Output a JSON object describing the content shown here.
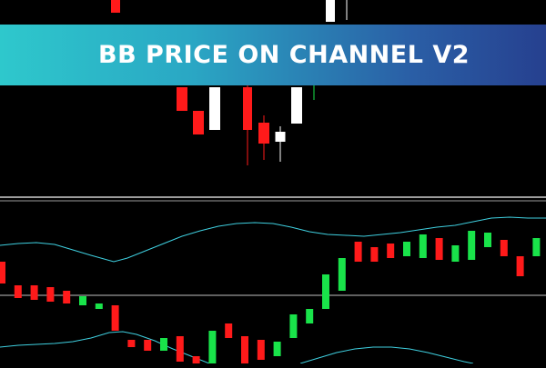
{
  "banner": {
    "title": "BB PRICE ON CHANNEL V2"
  },
  "colors": {
    "background": "#000000",
    "bull_main": "#ffffff",
    "bear_main": "#ff1a1a",
    "bull_indicator": "#19e34a",
    "bear_indicator": "#ff1a1a",
    "band": "#3fd0e0",
    "level_line": "#bfbfbf",
    "separator": "#cfcfcf"
  },
  "main_candles": [
    {
      "dir": "bear",
      "o": 14,
      "c": 0
    },
    {
      "dir": "bear",
      "o": 96,
      "c": 122
    },
    {
      "dir": "bear",
      "o": 122,
      "c": 148
    },
    {
      "dir": "bull",
      "o": 143,
      "c": 96
    },
    {
      "dir": "bear",
      "o": 96,
      "c": 143
    },
    {
      "dir": "bear",
      "o": 135,
      "c": 158
    },
    {
      "dir": "bull",
      "o": 156,
      "c": 145
    },
    {
      "dir": "bull",
      "o": 136,
      "c": 96
    },
    {
      "dir": "bull",
      "o": 24,
      "c": 0
    }
  ],
  "indicator_candles": [
    {
      "dir": "bear",
      "o": 288,
      "c": 312
    },
    {
      "dir": "bear",
      "o": 314,
      "c": 328
    },
    {
      "dir": "bear",
      "o": 314,
      "c": 330
    },
    {
      "dir": "bear",
      "o": 316,
      "c": 332
    },
    {
      "dir": "bear",
      "o": 320,
      "c": 334
    },
    {
      "dir": "bull",
      "o": 336,
      "c": 326
    },
    {
      "dir": "bull",
      "o": 340,
      "c": 334
    },
    {
      "dir": "bear",
      "o": 336,
      "c": 364
    },
    {
      "dir": "bear",
      "o": 374,
      "c": 382
    },
    {
      "dir": "bear",
      "o": 374,
      "c": 386
    },
    {
      "dir": "bull",
      "o": 386,
      "c": 372
    },
    {
      "dir": "bear",
      "o": 370,
      "c": 398
    },
    {
      "dir": "bear",
      "o": 392,
      "c": 400
    },
    {
      "dir": "bull",
      "o": 400,
      "c": 364
    },
    {
      "dir": "bear",
      "o": 356,
      "c": 372
    },
    {
      "dir": "bear",
      "o": 370,
      "c": 400
    },
    {
      "dir": "bear",
      "o": 374,
      "c": 396
    },
    {
      "dir": "bull",
      "o": 392,
      "c": 376
    },
    {
      "dir": "bull",
      "o": 372,
      "c": 346
    },
    {
      "dir": "bull",
      "o": 356,
      "c": 340
    },
    {
      "dir": "bull",
      "o": 340,
      "c": 302
    },
    {
      "dir": "bull",
      "o": 320,
      "c": 284
    },
    {
      "dir": "bear",
      "o": 266,
      "c": 288
    },
    {
      "dir": "bear",
      "o": 272,
      "c": 288
    },
    {
      "dir": "bear",
      "o": 268,
      "c": 284
    },
    {
      "dir": "bull",
      "o": 282,
      "c": 266
    },
    {
      "dir": "bull",
      "o": 284,
      "c": 258
    },
    {
      "dir": "bear",
      "o": 262,
      "c": 286
    },
    {
      "dir": "bull",
      "o": 288,
      "c": 270
    },
    {
      "dir": "bull",
      "o": 286,
      "c": 254
    },
    {
      "dir": "bull",
      "o": 272,
      "c": 256
    },
    {
      "dir": "bear",
      "o": 264,
      "c": 282
    },
    {
      "dir": "bear",
      "o": 282,
      "c": 304
    },
    {
      "dir": "bull",
      "o": 282,
      "c": 262
    }
  ]
}
